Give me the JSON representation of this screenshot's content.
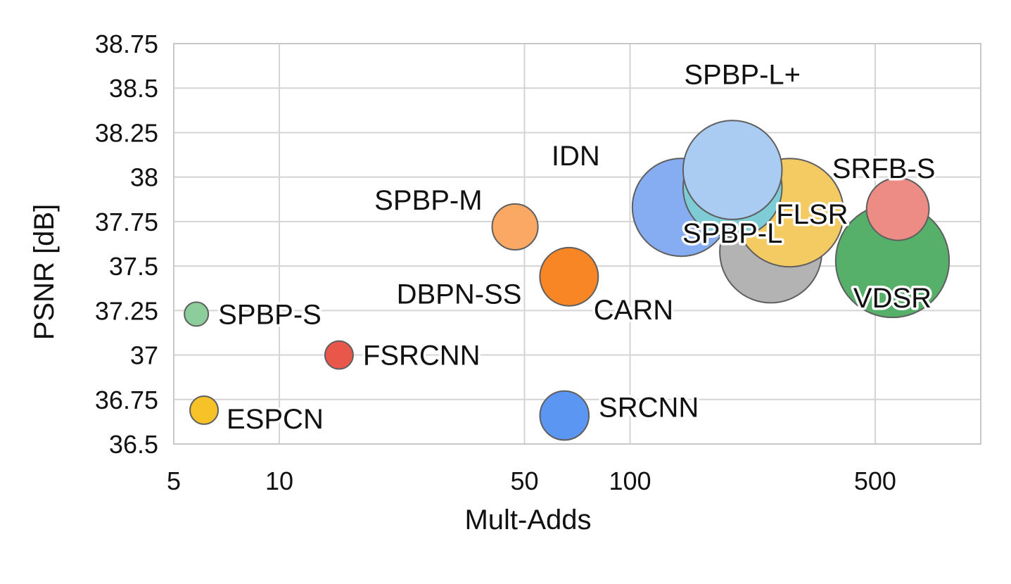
{
  "chart_data": {
    "type": "scatter",
    "title": "",
    "xlabel": "Mult-Adds",
    "ylabel": "PSNR [dB]",
    "xscale": "log",
    "xlim": [
      5,
      1000
    ],
    "ylim": [
      36.5,
      38.75
    ],
    "grid": true,
    "legend": "none",
    "x_ticks": [
      5,
      10,
      50,
      100,
      500
    ],
    "x_ticks_extra_grid": [
      1000
    ],
    "y_ticks": [
      "36.5",
      "36.75",
      "37",
      "37.25",
      "37.5",
      "37.75",
      "38",
      "38.25",
      "38.5",
      "38.75"
    ],
    "points": [
      {
        "label": "SPBP-S",
        "x": 5.8,
        "y": 37.23,
        "size_rel": 0.23,
        "color": "#8dcc9b",
        "label_pos": "right"
      },
      {
        "label": "ESPCN",
        "x": 6.1,
        "y": 36.69,
        "size_rel": 0.27,
        "color": "#f6c228",
        "label_pos": "below-right"
      },
      {
        "label": "FSRCNN",
        "x": 14.8,
        "y": 37.0,
        "size_rel": 0.27,
        "color": "#e8574a",
        "label_pos": "right"
      },
      {
        "label": "SPBP-M",
        "x": 47,
        "y": 37.72,
        "size_rel": 0.44,
        "color": "#fba865",
        "label_pos": "upper-left"
      },
      {
        "label": "DBPN-SS",
        "x": 67,
        "y": 37.44,
        "size_rel": 0.56,
        "color": "#f98625",
        "label_pos": "below-left"
      },
      {
        "label": "SRCNN",
        "x": 65,
        "y": 36.66,
        "size_rel": 0.47,
        "color": "#5b96f2",
        "label_pos": "right"
      },
      {
        "label": "VDSR",
        "x": 560,
        "y": 37.53,
        "size_rel": 1.09,
        "color": "#56b06a",
        "label_pos": "below"
      },
      {
        "label": "CARN",
        "x": 252,
        "y": 37.58,
        "size_rel": 0.98,
        "color": "#b3b3b3",
        "label_pos": "below-left"
      },
      {
        "label": "FLSR",
        "x": 285,
        "y": 37.8,
        "size_rel": 1.04,
        "color": "#f4cb62",
        "label_pos": "right"
      },
      {
        "label": "IDN",
        "x": 140,
        "y": 37.83,
        "size_rel": 0.94,
        "color": "#86acf2",
        "label_pos": "upper-left"
      },
      {
        "label": "SPBP-L",
        "x": 196,
        "y": 37.94,
        "size_rel": 0.95,
        "color": "#7ecdd6",
        "label_pos": "below"
      },
      {
        "label": "SPBP-L+",
        "x": 196,
        "y": 38.04,
        "size_rel": 0.95,
        "color": "#aaccf3",
        "label_pos": "above"
      },
      {
        "label": "SRFB-S",
        "x": 580,
        "y": 37.82,
        "size_rel": 0.6,
        "color": "#ec8c84",
        "label_pos": "above"
      }
    ]
  }
}
